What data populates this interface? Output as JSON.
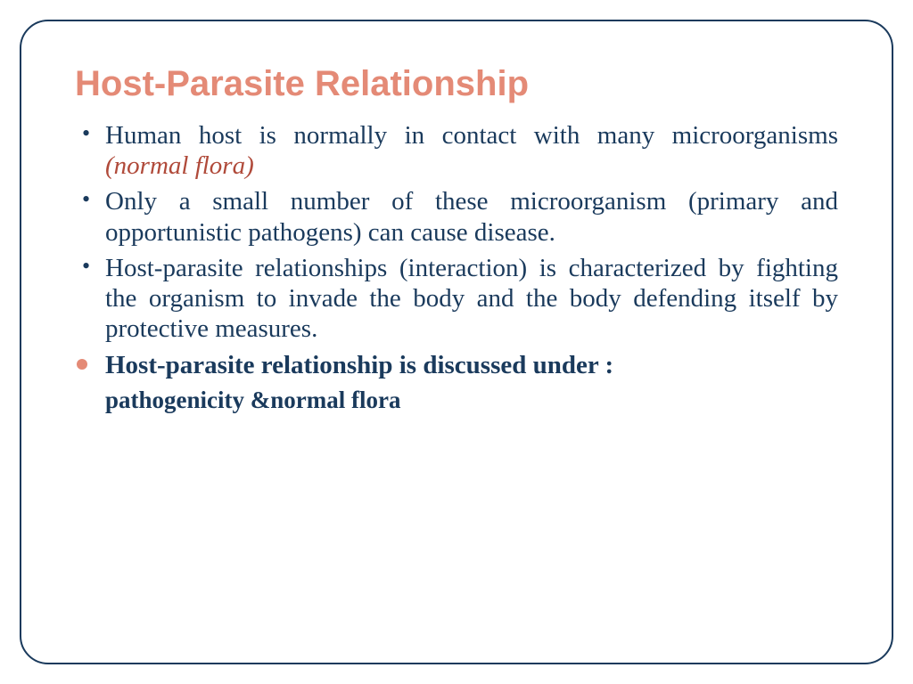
{
  "colors": {
    "title": "#e48a76",
    "body_text": "#1a3a5c",
    "accent_italic": "#b04a3a",
    "bullet_dot": "#1a3a5c",
    "bullet_disc": "#e48a76",
    "frame_border": "#1a3a5c",
    "background": "#ffffff"
  },
  "typography": {
    "title_fontsize": 40,
    "body_fontsize": 29,
    "sub_fontsize": 27
  },
  "title": "Host-Parasite Relationship",
  "bullets": [
    {
      "marker": "dot",
      "segments": [
        {
          "text": "Human host is normally in contact with many microorganisms ",
          "style": "plain"
        },
        {
          "text": "(normal flora)",
          "style": "italic-accent"
        }
      ]
    },
    {
      "marker": "dot",
      "segments": [
        {
          "text": " Only a small number of these microorganism (primary and opportunistic pathogens) can cause disease.",
          "style": "plain"
        }
      ]
    },
    {
      "marker": "dot",
      "segments": [
        {
          "text": "Host-parasite relationships (interaction) is characterized by fighting the organism to invade the body and the body defending itself by protective measures.",
          "style": "plain"
        }
      ]
    },
    {
      "marker": "disc",
      "segments": [
        {
          "text": "Host-parasite relationship is discussed under :",
          "style": "bold"
        }
      ],
      "subline": "pathogenicity &normal flora"
    }
  ]
}
